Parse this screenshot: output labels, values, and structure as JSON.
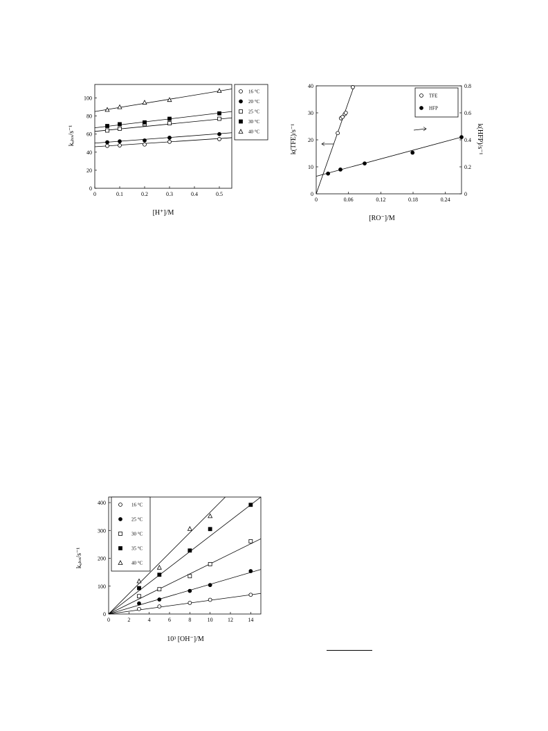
{
  "chart_data": [
    {
      "id": "c1",
      "type": "scatter",
      "xlabel": "[H⁺]/M",
      "ylabel": "kₒₕₛ/s⁻¹",
      "xlim": [
        0,
        0.55
      ],
      "ylim": [
        0,
        115
      ],
      "xticks": [
        "0",
        "0.1",
        "0.2",
        "0.3",
        "0.4",
        "0.5"
      ],
      "yticks": [
        "0",
        "20",
        "40",
        "60",
        "80",
        "100"
      ],
      "legend_position": "right-outside",
      "series": [
        {
          "name": "16 °C",
          "marker": "open-circle",
          "x": [
            0.05,
            0.1,
            0.2,
            0.3,
            0.5
          ],
          "y": [
            47,
            47.5,
            48.5,
            51.5,
            54.5
          ],
          "fit": [
            [
              0,
              46
            ],
            [
              0.55,
              56
            ]
          ]
        },
        {
          "name": "20 °C",
          "marker": "filled-circle",
          "x": [
            0.05,
            0.1,
            0.2,
            0.3,
            0.5
          ],
          "y": [
            51,
            52,
            53,
            56,
            60
          ],
          "fit": [
            [
              0,
              50
            ],
            [
              0.55,
              61.5
            ]
          ]
        },
        {
          "name": "25 °C",
          "marker": "open-square",
          "x": [
            0.05,
            0.1,
            0.2,
            0.3,
            0.5
          ],
          "y": [
            64,
            66,
            71,
            72,
            77
          ],
          "fit": [
            [
              0,
              63
            ],
            [
              0.55,
              78
            ]
          ]
        },
        {
          "name": "30 °C",
          "marker": "filled-square",
          "x": [
            0.05,
            0.1,
            0.2,
            0.3,
            0.5
          ],
          "y": [
            69,
            71,
            73,
            77,
            83
          ],
          "fit": [
            [
              0,
              67
            ],
            [
              0.55,
              85
            ]
          ]
        },
        {
          "name": "40 °C",
          "marker": "open-triangle",
          "x": [
            0.05,
            0.1,
            0.2,
            0.3,
            0.5
          ],
          "y": [
            87,
            90,
            95,
            98,
            108
          ],
          "fit": [
            [
              0,
              85
            ],
            [
              0.55,
              110
            ]
          ]
        }
      ]
    },
    {
      "id": "c2",
      "type": "scatter",
      "xlabel": "[RO⁻]/M",
      "ylabel": "k(TFE)/s⁻¹",
      "ylabel_right": "k(HFP)/s⁻¹",
      "xlim": [
        0,
        0.27
      ],
      "ylim": [
        0,
        40
      ],
      "ylim_right": [
        0,
        0.8
      ],
      "xticks": [
        "0",
        "0.06",
        "0.12",
        "0.18",
        "0.24"
      ],
      "yticks": [
        "0",
        "10",
        "20",
        "30",
        "40"
      ],
      "yticks_right": [
        "0",
        "0.2",
        "0.4",
        "0.6",
        "0.8"
      ],
      "legend_position": "top-right",
      "series": [
        {
          "name": "TFE",
          "marker": "open-circle",
          "axis": "left",
          "x": [
            0.04,
            0.046,
            0.049,
            0.053,
            0.055,
            0.068
          ],
          "y": [
            22.5,
            28,
            28.5,
            29.5,
            30,
            39.5
          ],
          "fit": [
            [
              0,
              0
            ],
            [
              0.0705,
              40
            ]
          ]
        },
        {
          "name": "HFP",
          "marker": "filled-circle",
          "axis": "right",
          "x": [
            0.022,
            0.045,
            0.09,
            0.179,
            0.27
          ],
          "y": [
            0.15,
            0.18,
            0.225,
            0.305,
            0.42
          ],
          "fit": [
            [
              0,
              0.13
            ],
            [
              0.27,
              0.42
            ]
          ]
        }
      ]
    },
    {
      "id": "c3",
      "type": "scatter",
      "xlabel": "10³ [OH⁻]/M",
      "ylabel": "kₒₕₛ/s⁻¹",
      "xlim": [
        0,
        15
      ],
      "ylim": [
        0,
        420
      ],
      "xticks": [
        "0",
        "2",
        "4",
        "6",
        "8",
        "10",
        "12",
        "14"
      ],
      "yticks": [
        "0",
        "100",
        "200",
        "300",
        "400"
      ],
      "legend_position": "top-left",
      "series": [
        {
          "name": "16 °C",
          "marker": "open-circle",
          "x": [
            3,
            5,
            8,
            10,
            14
          ],
          "y": [
            18,
            27,
            40,
            51,
            69
          ],
          "fit": [
            [
              0,
              0
            ],
            [
              15,
              74
            ]
          ]
        },
        {
          "name": "25 °C",
          "marker": "filled-circle",
          "x": [
            3,
            5,
            8,
            10,
            14
          ],
          "y": [
            38,
            52,
            83,
            104,
            154
          ],
          "fit": [
            [
              0,
              0
            ],
            [
              15,
              160
            ]
          ]
        },
        {
          "name": "30 °C",
          "marker": "open-square",
          "x": [
            3,
            5,
            8,
            10,
            14
          ],
          "y": [
            64,
            89,
            136,
            179,
            261
          ],
          "fit": [
            [
              0,
              0
            ],
            [
              15,
              270
            ]
          ]
        },
        {
          "name": "35 °C",
          "marker": "filled-square",
          "x": [
            3,
            5,
            8,
            10,
            14
          ],
          "y": [
            93,
            141,
            228,
            305,
            392
          ],
          "fit": [
            [
              0,
              0
            ],
            [
              15,
              420
            ]
          ]
        },
        {
          "name": "40 °C",
          "marker": "open-triangle",
          "x": [
            3,
            5,
            8,
            10
          ],
          "y": [
            118,
            167,
            306,
            352
          ],
          "fit": [
            [
              0,
              0
            ],
            [
              11.5,
              420
            ]
          ]
        }
      ]
    }
  ]
}
